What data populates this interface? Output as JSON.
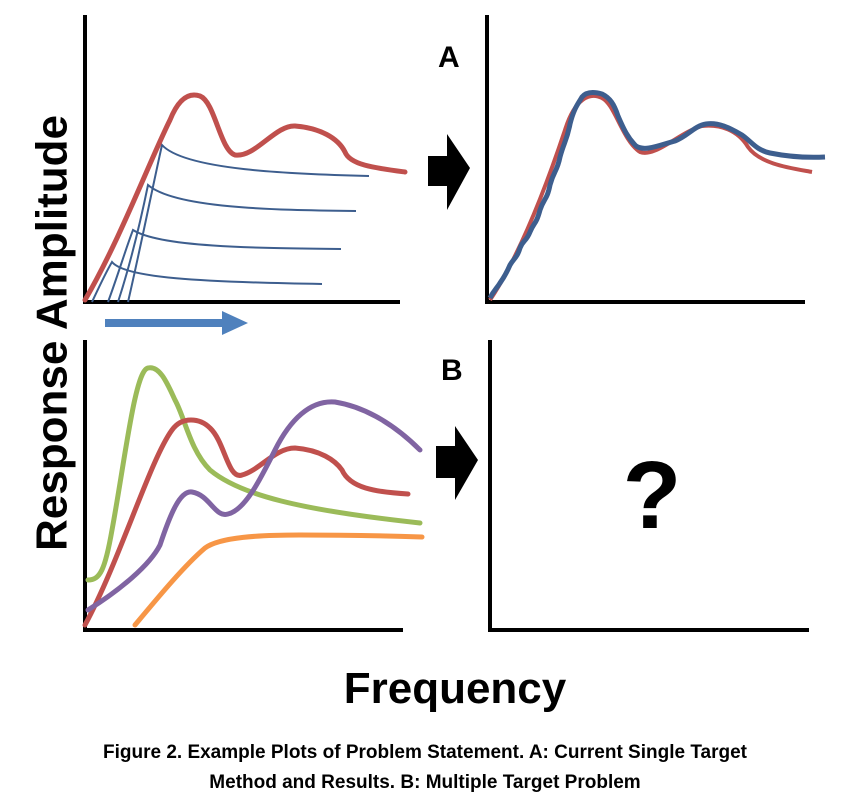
{
  "figure": {
    "y_axis_label": "Response Amplitude",
    "x_axis_label": "Frequency",
    "panel_a_letter": "A",
    "panel_b_letter": "B",
    "unknown_result_mark": "?",
    "caption_line1": "Figure 2. Example Plots of Problem Statement. A: Current Single Target",
    "caption_line2": "Method and Results. B: Multiple Target Problem"
  },
  "colors": {
    "axis": "#000000",
    "target_red": "#c0504d",
    "single_blue": "#4f6fa0",
    "dark_blue": "#3d5e8e",
    "sweep_arrow": "#4f81bd",
    "green": "#9bbb59",
    "purple": "#8064a2",
    "orange": "#f79646"
  },
  "icons": {
    "sweep_arrow": "right-arrow-icon",
    "transition_arrow": "block-arrow-icon"
  }
}
